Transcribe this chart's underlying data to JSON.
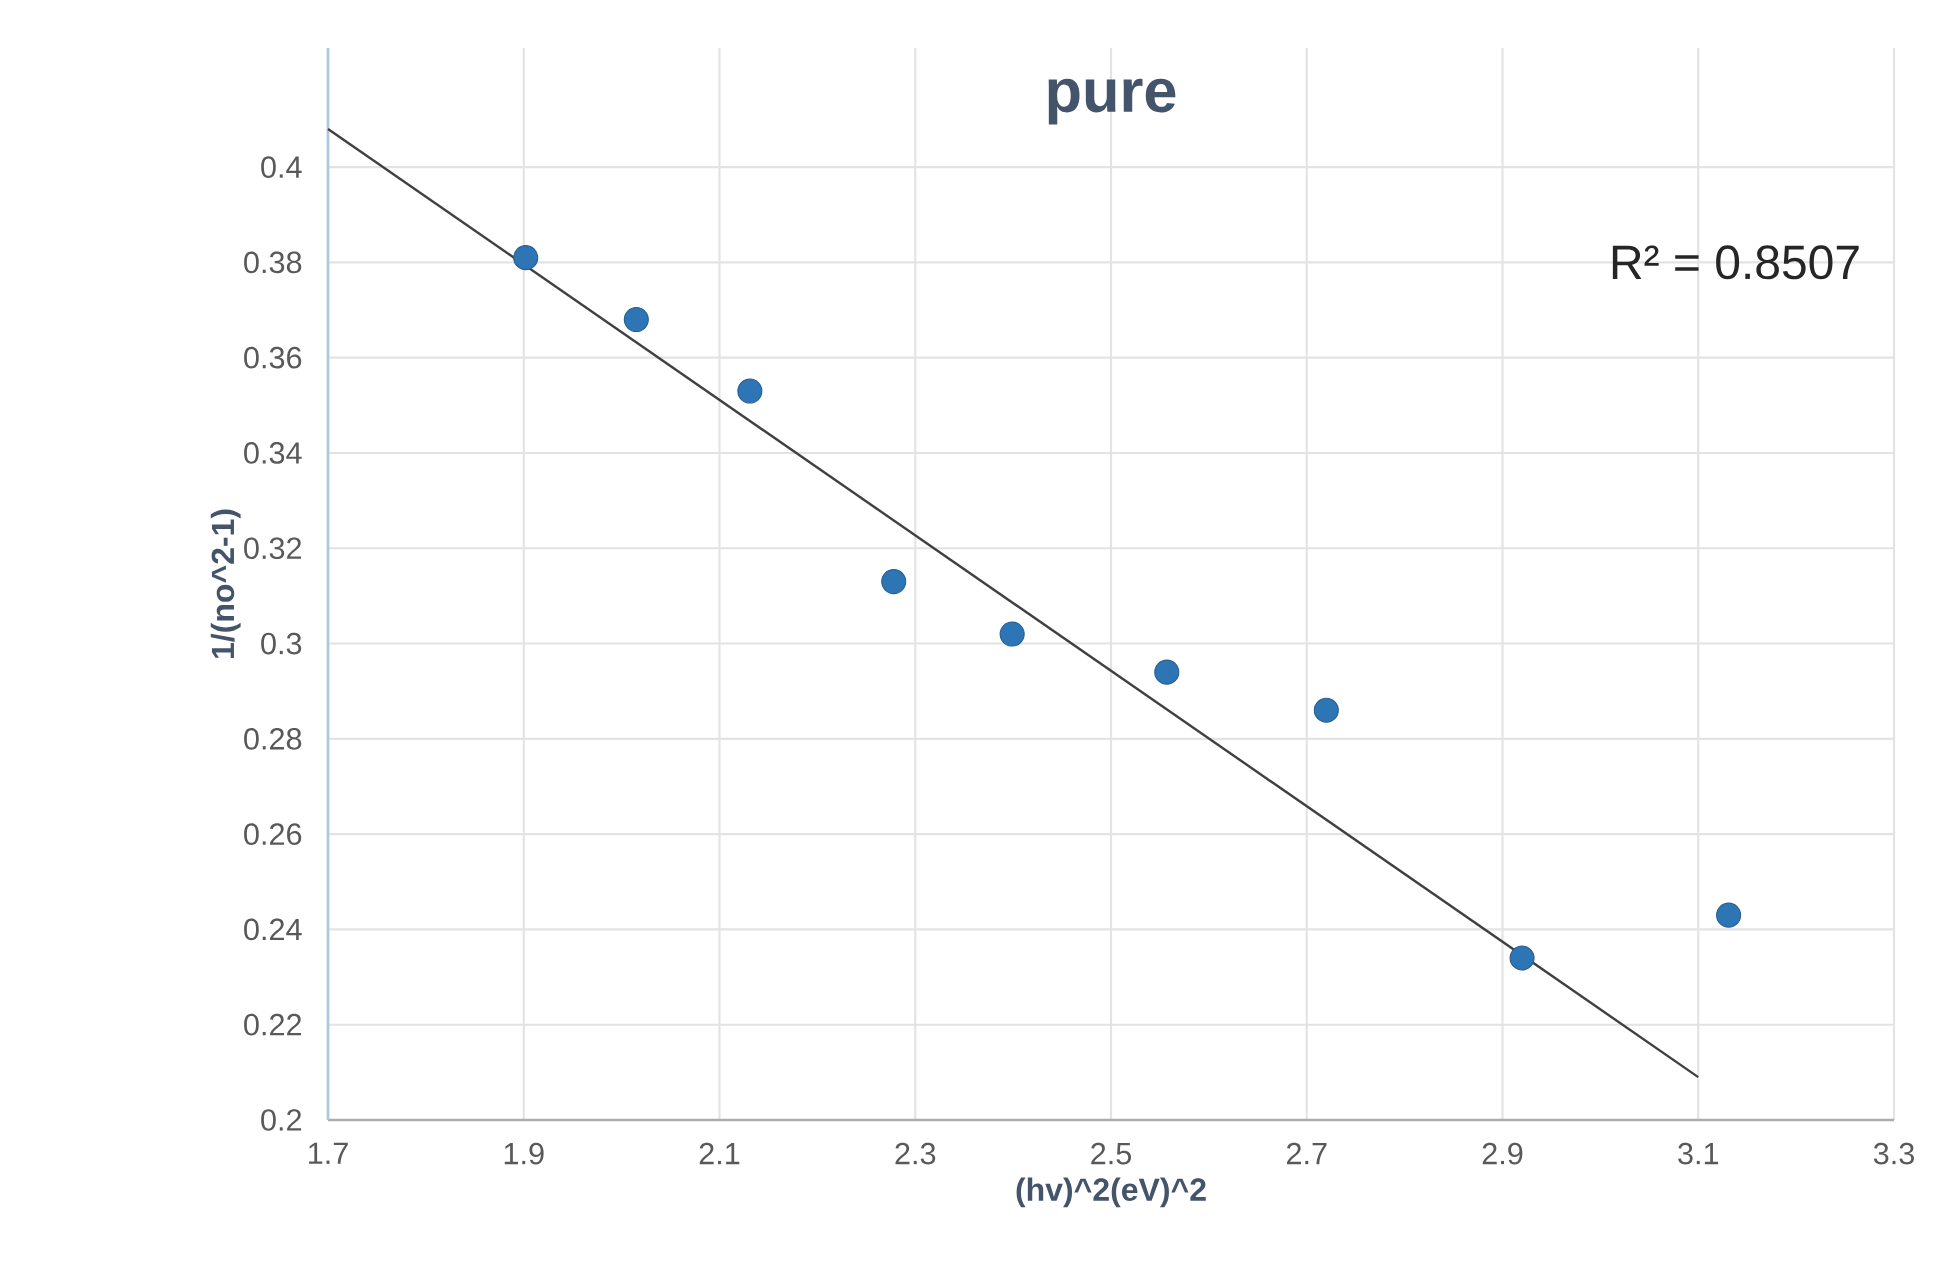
{
  "chart_data": {
    "type": "scatter",
    "title": "pure",
    "xlabel": "(hv)^2(eV)^2",
    "ylabel": "1/(no^2-1)",
    "annotations": [
      "R² = 0.8507"
    ],
    "series": [
      {
        "marker": "circle",
        "color": "#2e75b6",
        "x": [
          1.902,
          2.015,
          2.131,
          2.278,
          2.399,
          2.557,
          2.72,
          2.92,
          3.131
        ],
        "values": [
          0.381,
          0.368,
          0.353,
          0.313,
          0.302,
          0.294,
          0.286,
          0.234,
          0.243
        ]
      },
      {
        "type": "line",
        "marker": "none",
        "color": "#404040",
        "x": [
          1.7,
          3.1
        ],
        "values": [
          0.408,
          0.209
        ]
      }
    ],
    "xlim": [
      1.7,
      3.3
    ],
    "xticks": [
      1.7,
      1.9,
      2.1,
      2.3,
      2.5,
      2.7,
      2.9,
      3.1,
      3.3
    ],
    "ylim": [
      0.2,
      0.425
    ],
    "yticks": [
      0.2,
      0.22,
      0.24,
      0.26,
      0.28,
      0.3,
      0.32,
      0.34,
      0.36,
      0.38,
      0.4
    ],
    "grid": true
  }
}
